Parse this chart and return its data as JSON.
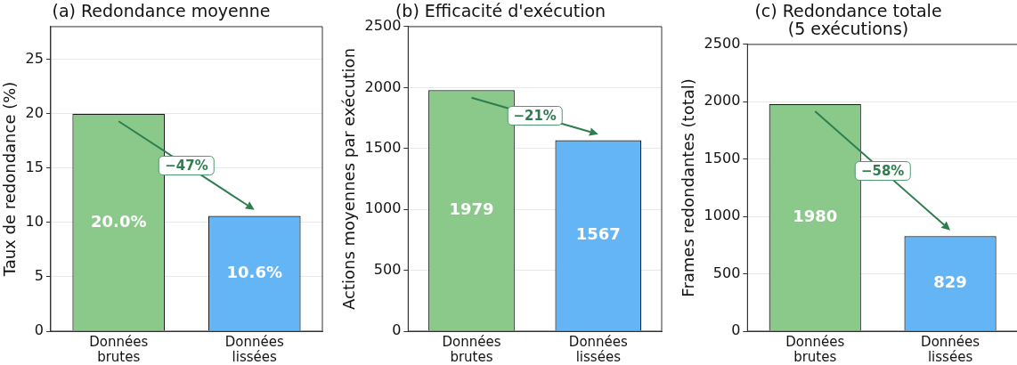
{
  "chart_data": [
    {
      "type": "bar",
      "title": "(a) Redondance moyenne",
      "ylabel": "Taux de redondance (%)",
      "categories": [
        "Données brutes",
        "Données lissées"
      ],
      "values": [
        20.0,
        10.6
      ],
      "colors": [
        "#8bc98b",
        "#64b5f6"
      ],
      "value_labels": [
        "20.0%",
        "10.6%"
      ],
      "ylim": [
        0,
        28
      ],
      "yticks": [
        0,
        5,
        10,
        15,
        20,
        25
      ],
      "grid": "y",
      "annotations": [
        "−47%"
      ]
    },
    {
      "type": "bar",
      "title": "(b) Efficacité d'exécution",
      "ylabel": "Actions moyennes par exécution",
      "categories": [
        "Données brutes",
        "Données lissées"
      ],
      "values": [
        1979,
        1567
      ],
      "colors": [
        "#8bc98b",
        "#64b5f6"
      ],
      "data_labels": true,
      "ylim": [
        0,
        2500
      ],
      "yticks": [
        0,
        500,
        1000,
        1500,
        2000,
        2500
      ],
      "grid": "y",
      "annotations": [
        "−21%"
      ]
    },
    {
      "type": "bar",
      "title": "(c) Redondance totale\n(5 exécutions)",
      "ylabel": "Frames redondantes (total)",
      "categories": [
        "Données brutes",
        "Données lissées"
      ],
      "values": [
        1980,
        829
      ],
      "colors": [
        "#8bc98b",
        "#64b5f6"
      ],
      "data_labels": true,
      "ylim": [
        0,
        2500
      ],
      "yticks": [
        0,
        500,
        1000,
        1500,
        2000,
        2500
      ],
      "grid": "y",
      "annotations": [
        "−58%"
      ]
    }
  ]
}
